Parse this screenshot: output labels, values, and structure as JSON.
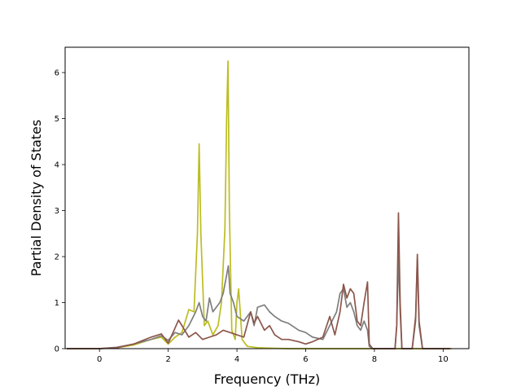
{
  "chart_data": {
    "type": "line",
    "title": "",
    "xlabel": "Frequency (THz)",
    "ylabel": "Partial Density of States",
    "xlim": [
      -1.0,
      10.75
    ],
    "ylim": [
      0,
      6.55
    ],
    "xticks": [
      0,
      2,
      4,
      6,
      8,
      10
    ],
    "yticks": [
      0,
      1,
      2,
      3,
      4,
      5,
      6
    ],
    "grid": false,
    "legend": "none",
    "series": [
      {
        "color": "#bcbd22",
        "x": [
          -0.95,
          0,
          0.5,
          1.0,
          1.5,
          1.8,
          2.0,
          2.2,
          2.4,
          2.6,
          2.75,
          2.85,
          2.9,
          2.95,
          3.05,
          3.15,
          3.3,
          3.45,
          3.55,
          3.65,
          3.7,
          3.74,
          3.78,
          3.85,
          3.95,
          4.0,
          4.05,
          4.15,
          4.3,
          4.6,
          5.0,
          5.5,
          6.0,
          6.5,
          7.0,
          7.5,
          8.0,
          8.5,
          9.0,
          9.5,
          10.0,
          10.25
        ],
        "y": [
          0,
          0,
          0.02,
          0.08,
          0.2,
          0.25,
          0.1,
          0.25,
          0.35,
          0.85,
          0.8,
          2.5,
          4.45,
          2.5,
          0.5,
          0.6,
          0.3,
          0.5,
          1.0,
          2.6,
          5.0,
          6.25,
          3.0,
          0.4,
          0.2,
          1.0,
          1.3,
          0.2,
          0.05,
          0.02,
          0.01,
          0,
          0,
          0,
          0,
          0,
          0,
          0,
          0,
          0,
          0,
          0
        ]
      },
      {
        "color": "#7f7f7f",
        "x": [
          -0.95,
          0,
          0.5,
          1.0,
          1.5,
          1.8,
          2.0,
          2.2,
          2.4,
          2.6,
          2.8,
          2.9,
          3.0,
          3.1,
          3.2,
          3.3,
          3.4,
          3.5,
          3.6,
          3.7,
          3.75,
          3.8,
          3.9,
          4.0,
          4.2,
          4.4,
          4.5,
          4.6,
          4.8,
          4.95,
          5.1,
          5.3,
          5.5,
          5.8,
          6.0,
          6.2,
          6.5,
          6.7,
          6.9,
          7.0,
          7.1,
          7.2,
          7.3,
          7.4,
          7.5,
          7.6,
          7.7,
          7.8,
          7.85,
          7.95,
          8.1,
          8.3,
          8.6,
          8.65,
          8.7,
          8.75,
          8.8,
          8.9,
          9.1,
          9.2,
          9.25,
          9.3,
          9.4,
          9.6,
          9.9,
          10.2
        ],
        "y": [
          0,
          0,
          0.03,
          0.1,
          0.2,
          0.28,
          0.18,
          0.35,
          0.3,
          0.5,
          0.8,
          1.0,
          0.7,
          0.6,
          1.1,
          0.8,
          0.9,
          1.0,
          1.2,
          1.6,
          1.8,
          1.2,
          1.0,
          0.7,
          0.6,
          0.8,
          0.5,
          0.9,
          0.95,
          0.8,
          0.7,
          0.6,
          0.55,
          0.4,
          0.35,
          0.25,
          0.2,
          0.5,
          0.8,
          1.2,
          1.3,
          0.9,
          1.0,
          0.8,
          0.5,
          0.4,
          0.6,
          0.4,
          0.05,
          0,
          0,
          0,
          0,
          0.5,
          2.0,
          0.8,
          0,
          0,
          0,
          0.6,
          1.95,
          0.5,
          0,
          0,
          0,
          0
        ]
      },
      {
        "color": "#8c564b",
        "x": [
          -0.95,
          0,
          0.5,
          1.0,
          1.5,
          1.8,
          2.0,
          2.2,
          2.3,
          2.4,
          2.6,
          2.8,
          3.0,
          3.2,
          3.4,
          3.6,
          3.8,
          4.0,
          4.2,
          4.4,
          4.5,
          4.6,
          4.8,
          4.95,
          5.1,
          5.3,
          5.5,
          5.8,
          6.0,
          6.2,
          6.5,
          6.7,
          6.85,
          7.0,
          7.1,
          7.2,
          7.3,
          7.4,
          7.5,
          7.6,
          7.7,
          7.8,
          7.85,
          7.95,
          8.1,
          8.3,
          8.6,
          8.65,
          8.7,
          8.75,
          8.8,
          8.9,
          9.1,
          9.2,
          9.25,
          9.3,
          9.4,
          9.6,
          9.9,
          10.2
        ],
        "y": [
          0,
          0,
          0.02,
          0.1,
          0.25,
          0.32,
          0.12,
          0.45,
          0.62,
          0.5,
          0.25,
          0.35,
          0.2,
          0.25,
          0.3,
          0.4,
          0.35,
          0.3,
          0.25,
          0.8,
          0.55,
          0.7,
          0.4,
          0.5,
          0.3,
          0.2,
          0.2,
          0.15,
          0.1,
          0.15,
          0.25,
          0.7,
          0.3,
          0.8,
          1.4,
          1.1,
          1.3,
          1.2,
          0.6,
          0.5,
          1.0,
          1.45,
          0.1,
          0,
          0,
          0,
          0,
          0.5,
          2.95,
          1.0,
          0,
          0,
          0,
          0.7,
          2.05,
          0.6,
          0,
          0,
          0,
          0
        ]
      }
    ]
  }
}
